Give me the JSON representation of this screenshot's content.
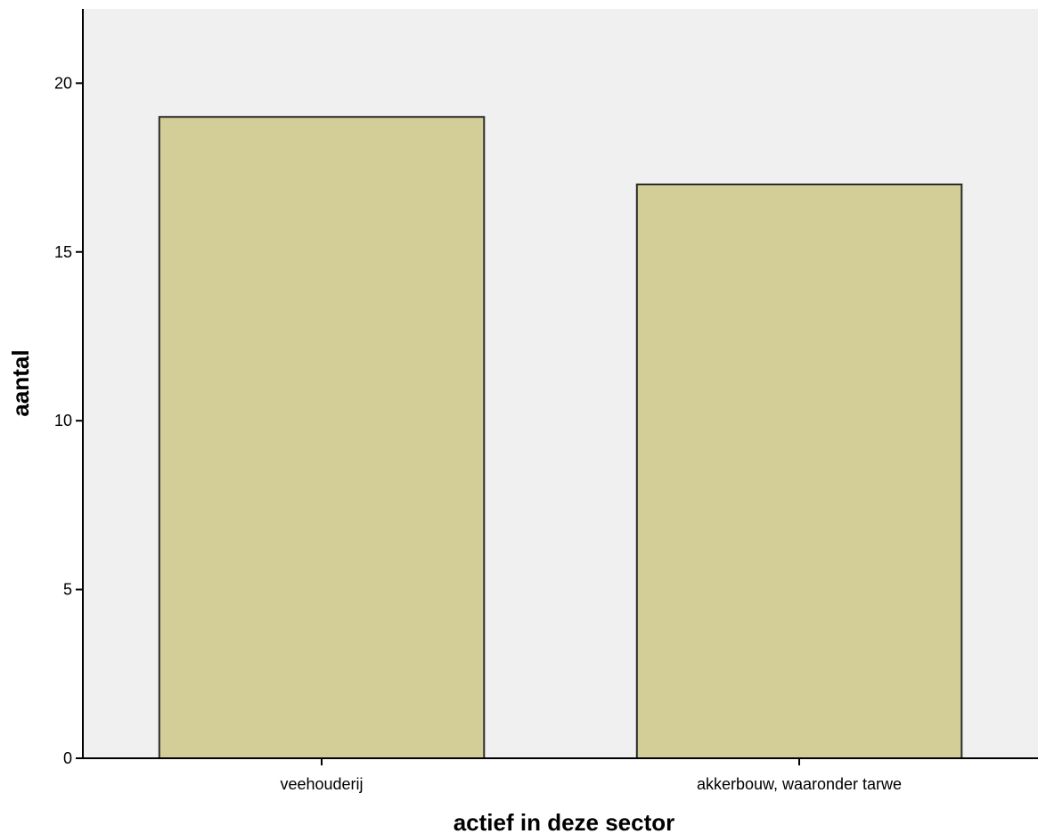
{
  "chart_data": {
    "type": "bar",
    "categories": [
      "veehouderij",
      "akkerbouw, waaronder tarwe"
    ],
    "values": [
      19,
      17
    ],
    "title": "",
    "xlabel": "actief in deze sector",
    "ylabel": "aantal",
    "ylim": [
      0,
      22.2
    ],
    "yticks": [
      0,
      5,
      10,
      15,
      20
    ],
    "ytick_labels": [
      "0",
      "5",
      "10",
      "15",
      "20"
    ],
    "grid": false,
    "legend": "none",
    "colors": {
      "plot_background": "#f0f0f0",
      "bar_fill": "#d3ce98",
      "bar_stroke": "#2b2b2b",
      "axis": "#000000"
    }
  }
}
